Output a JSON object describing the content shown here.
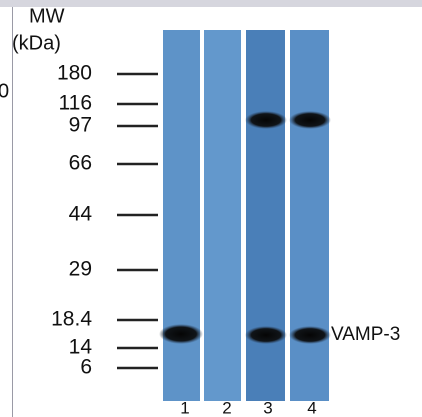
{
  "edge_text": "0",
  "header": {
    "title": "MW",
    "unit": "(kDa)"
  },
  "markers": [
    "180",
    "116",
    "97",
    "66",
    "44",
    "29",
    "18.4",
    "14",
    "6"
  ],
  "band_label": "VAMP-3",
  "lanes": [
    "1",
    "2",
    "3",
    "4"
  ]
}
